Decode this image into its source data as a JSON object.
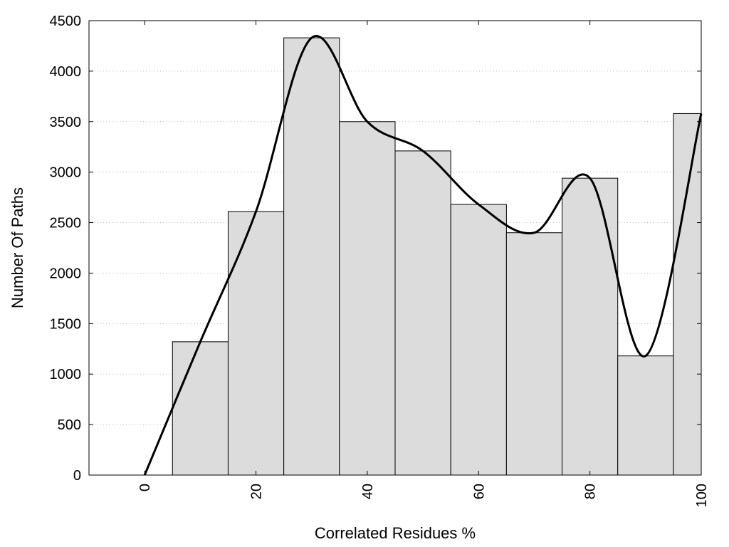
{
  "chart_data": {
    "type": "bar",
    "title": "",
    "xlabel": "Correlated Residues %",
    "ylabel": "Number Of Paths",
    "xlim": [
      -10,
      100
    ],
    "ylim": [
      0,
      4500
    ],
    "grid": {
      "y": true,
      "x": false
    },
    "x_ticks": [
      0,
      20,
      40,
      60,
      80,
      100
    ],
    "y_ticks": [
      0,
      500,
      1000,
      1500,
      2000,
      2500,
      3000,
      3500,
      4000,
      4500
    ],
    "bar_width": 10,
    "bar_fill": "#dcdcdc",
    "bar_edge": "#000000",
    "line_color": "#000000",
    "categories": [
      10,
      20,
      30,
      40,
      50,
      60,
      70,
      80,
      90,
      100
    ],
    "values": [
      1320,
      2610,
      4330,
      3500,
      3210,
      2680,
      2400,
      2940,
      1180,
      3580
    ],
    "line": {
      "x": [
        0,
        10,
        20,
        30,
        40,
        50,
        60,
        70,
        80,
        90,
        100
      ],
      "y": [
        0,
        1320,
        2610,
        4330,
        3500,
        3210,
        2680,
        2400,
        2940,
        1180,
        3580
      ]
    }
  }
}
